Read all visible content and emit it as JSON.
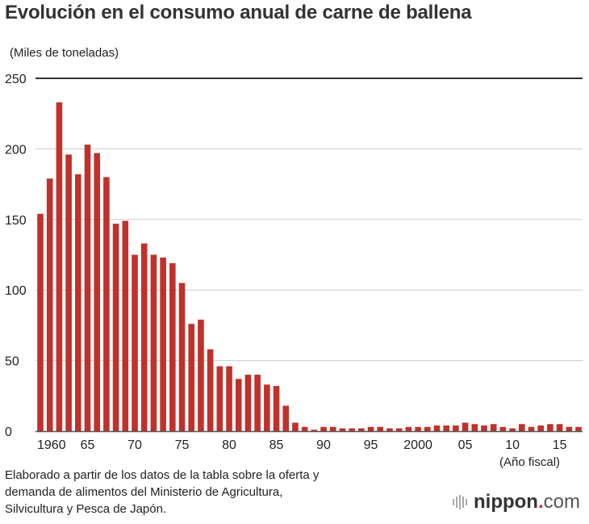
{
  "chart_data": {
    "type": "bar",
    "title": "Evolución en el consumo anual de carne de ballena",
    "ylabel": "(Miles de toneladas)",
    "xlabel": "(Año fiscal)",
    "ylim": [
      0,
      250
    ],
    "yticks": [
      0,
      50,
      100,
      150,
      200,
      250
    ],
    "x": [
      1960,
      1961,
      1962,
      1963,
      1964,
      1965,
      1966,
      1967,
      1968,
      1969,
      1970,
      1971,
      1972,
      1973,
      1974,
      1975,
      1976,
      1977,
      1978,
      1979,
      1980,
      1981,
      1982,
      1983,
      1984,
      1985,
      1986,
      1987,
      1988,
      1989,
      1990,
      1991,
      1992,
      1993,
      1994,
      1995,
      1996,
      1997,
      1998,
      1999,
      2000,
      2001,
      2002,
      2003,
      2004,
      2005,
      2006,
      2007,
      2008,
      2009,
      2010,
      2011,
      2012,
      2013,
      2014,
      2015,
      2016,
      2017
    ],
    "values": [
      154,
      179,
      233,
      196,
      182,
      203,
      197,
      180,
      147,
      149,
      125,
      133,
      125,
      123,
      119,
      105,
      76,
      79,
      58,
      46,
      46,
      37,
      40,
      40,
      33,
      32,
      18,
      6,
      3,
      1,
      3,
      3,
      2,
      2,
      2,
      3,
      3,
      2,
      2,
      3,
      3,
      3,
      4,
      4,
      4,
      6,
      5,
      4,
      5,
      3,
      2,
      5,
      3,
      4,
      5,
      5,
      3,
      3
    ],
    "xtick_labels": [
      {
        "year": 1960,
        "label": "1960"
      },
      {
        "year": 1965,
        "label": "65"
      },
      {
        "year": 1970,
        "label": "70"
      },
      {
        "year": 1975,
        "label": "75"
      },
      {
        "year": 1980,
        "label": "80"
      },
      {
        "year": 1985,
        "label": "85"
      },
      {
        "year": 1990,
        "label": "90"
      },
      {
        "year": 1995,
        "label": "95"
      },
      {
        "year": 2000,
        "label": "2000"
      },
      {
        "year": 2005,
        "label": "05"
      },
      {
        "year": 2010,
        "label": "10"
      },
      {
        "year": 2015,
        "label": "15"
      }
    ],
    "bar_color": "#c0312b",
    "grid": true
  },
  "note": [
    "Elaborado a partir de los datos de la tabla sobre la oferta y",
    "demanda de alimentos del Ministerio de Agricultura,",
    "Silvicultura y Pesca de Japón."
  ],
  "logo": {
    "name": "nippon",
    "dot": ".",
    "suffix": "com"
  }
}
